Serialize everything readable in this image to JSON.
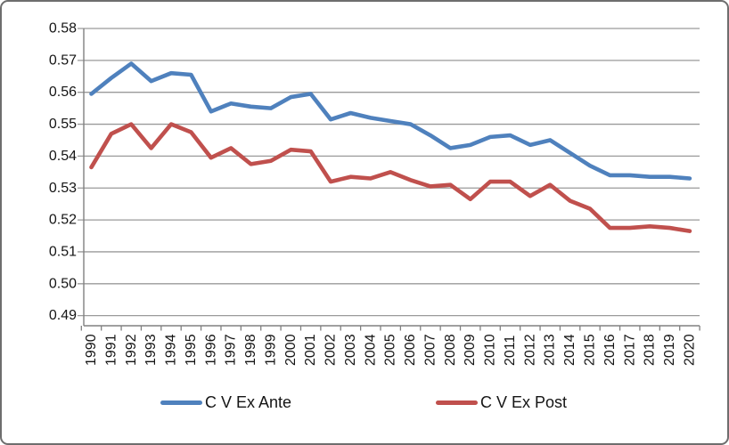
{
  "chart_data": {
    "type": "line",
    "x": [
      1990,
      1991,
      1992,
      1993,
      1994,
      1995,
      1996,
      1997,
      1998,
      1999,
      2000,
      2001,
      2002,
      2003,
      2004,
      2005,
      2006,
      2007,
      2008,
      2009,
      2010,
      2011,
      2012,
      2013,
      2014,
      2015,
      2016,
      2017,
      2018,
      2019,
      2020
    ],
    "x_labels": [
      "1990",
      "1991",
      "1992",
      "1993",
      "1994",
      "1995",
      "1996",
      "1997",
      "1998",
      "1999",
      "2000",
      "2001",
      "2002",
      "2003",
      "2004",
      "2005",
      "2006",
      "2007",
      "2008",
      "2009",
      "2010",
      "2011",
      "2012",
      "2013",
      "2014",
      "2015",
      "2016",
      "2017",
      "2018",
      "2019",
      "2020"
    ],
    "series": [
      {
        "name": "C V Ex Ante",
        "color": "#4F81BD",
        "values": [
          0.5595,
          0.5645,
          0.569,
          0.5635,
          0.566,
          0.5655,
          0.554,
          0.5565,
          0.5555,
          0.555,
          0.5585,
          0.5595,
          0.5515,
          0.5535,
          0.552,
          0.551,
          0.55,
          0.5465,
          0.5425,
          0.5435,
          0.546,
          0.5465,
          0.5435,
          0.545,
          0.541,
          0.537,
          0.534,
          0.534,
          0.5335,
          0.5335,
          0.533
        ]
      },
      {
        "name": "C V Ex Post",
        "color": "#C0504D",
        "values": [
          0.5365,
          0.547,
          0.55,
          0.5425,
          0.55,
          0.5475,
          0.5395,
          0.5425,
          0.5375,
          0.5385,
          0.542,
          0.5415,
          0.532,
          0.5335,
          0.533,
          0.535,
          0.5325,
          0.5305,
          0.531,
          0.5265,
          0.532,
          0.532,
          0.5275,
          0.531,
          0.526,
          0.5235,
          0.5175,
          0.5175,
          0.518,
          0.5175,
          0.5165
        ]
      }
    ],
    "title": "",
    "xlabel": "",
    "ylabel": "",
    "ylim": [
      0.49,
      0.58
    ],
    "ytick_step": 0.01,
    "y_tick_labels": [
      "0.58",
      "0.57",
      "0.56",
      "0.55",
      "0.54",
      "0.53",
      "0.52",
      "0.51",
      "0.50",
      "0.49"
    ],
    "grid": "horizontal-only",
    "legend_position": "bottom"
  },
  "colors": {
    "grid": "#9a9a9a",
    "axis": "#808080",
    "text": "#151515",
    "frame_border": "#6e6e6e",
    "background": "#ffffff"
  }
}
